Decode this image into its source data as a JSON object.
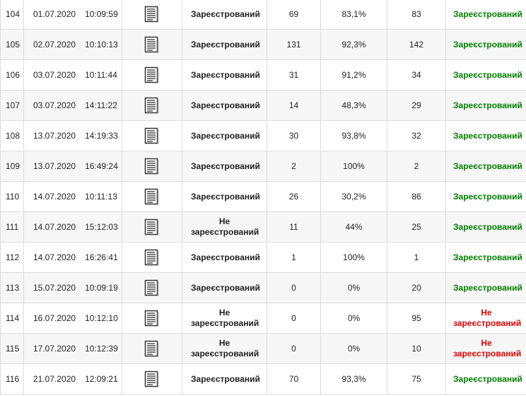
{
  "table": {
    "rows": [
      [
        "104",
        "01.07.2020",
        "10:09:59",
        "Зареєстрований",
        "69",
        "83,1%",
        "83",
        "Зареєстрований"
      ],
      [
        "105",
        "02.07.2020",
        "10:10:13",
        "Зареєстрований",
        "131",
        "92,3%",
        "142",
        "Зареєстрований"
      ],
      [
        "106",
        "03.07.2020",
        "10:11:44",
        "Зареєстрований",
        "31",
        "91,2%",
        "34",
        "Зареєстрований"
      ],
      [
        "107",
        "03.07.2020",
        "14:11:22",
        "Зареєстрований",
        "14",
        "48,3%",
        "29",
        "Зареєстрований"
      ],
      [
        "108",
        "13.07.2020",
        "14:19:33",
        "Зареєстрований",
        "30",
        "93,8%",
        "32",
        "Зареєстрований"
      ],
      [
        "109",
        "13.07.2020",
        "16:49:24",
        "Зареєстрований",
        "2",
        "100%",
        "2",
        "Зареєстрований"
      ],
      [
        "110",
        "14.07.2020",
        "10:11:13",
        "Зареєстрований",
        "26",
        "30,2%",
        "86",
        "Зареєстрований"
      ],
      [
        "111",
        "14.07.2020",
        "15:12:03",
        "Не зареєстрований",
        "11",
        "44%",
        "25",
        "Зареєстрований"
      ],
      [
        "112",
        "14.07.2020",
        "16:26:41",
        "Зареєстрований",
        "1",
        "100%",
        "1",
        "Зареєстрований"
      ],
      [
        "113",
        "15.07.2020",
        "10:09:19",
        "Зареєстрований",
        "0",
        "0%",
        "20",
        "Зареєстрований"
      ],
      [
        "114",
        "16.07.2020",
        "10:12:10",
        "Не зареєстрований",
        "0",
        "0%",
        "95",
        "Не зареєстрований"
      ],
      [
        "115",
        "17.07.2020",
        "10:12:39",
        "Не зареєстрований",
        "0",
        "0%",
        "10",
        "Не зареєстрований"
      ],
      [
        "116",
        "21.07.2020",
        "12:09:21",
        "Зареєстрований",
        "70",
        "93,3%",
        "75",
        "Зареєстрований"
      ]
    ],
    "result_colors": [
      "#008000",
      "#008000",
      "#008000",
      "#008000",
      "#008000",
      "#008000",
      "#008000",
      "#008000",
      "#008000",
      "#008000",
      "#e00000",
      "#e00000",
      "#008000"
    ]
  }
}
